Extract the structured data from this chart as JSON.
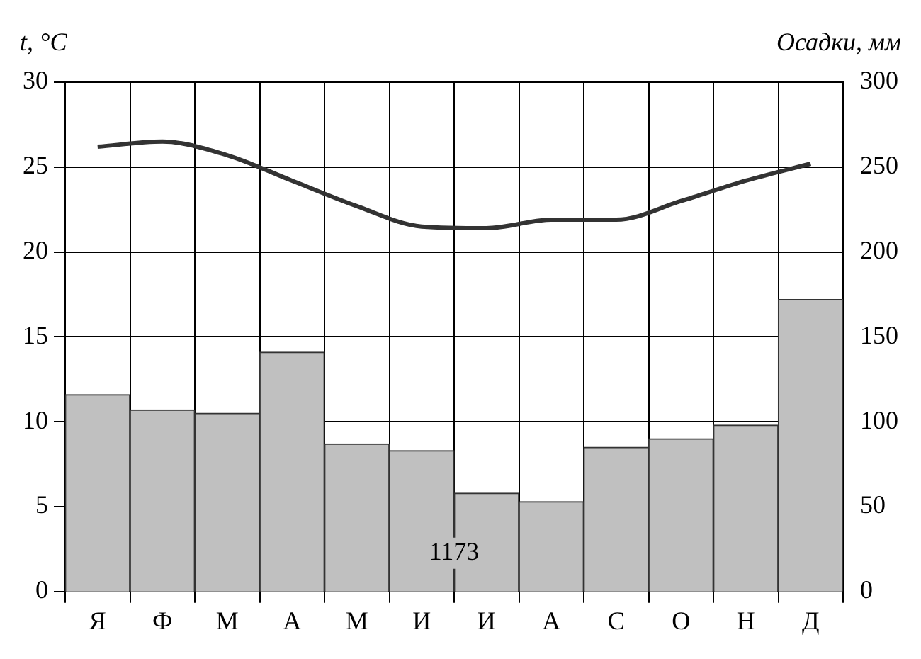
{
  "chart_data": {
    "type": "bar",
    "categories": [
      "Я",
      "Ф",
      "М",
      "А",
      "М",
      "И",
      "И",
      "А",
      "С",
      "О",
      "Н",
      "Д"
    ],
    "ylabel": "t, °C",
    "y2label": "Осадки, мм",
    "series": [
      {
        "axis": "y2",
        "color": "#c0c0c0",
        "values": [
          116,
          107,
          105,
          141,
          87,
          83,
          58,
          53,
          85,
          90,
          98,
          172
        ]
      },
      {
        "type": "line",
        "axis": "y",
        "color": "#333333",
        "values": [
          26.2,
          26.5,
          25.7,
          24.2,
          22.7,
          21.5,
          21.4,
          21.9,
          21.9,
          23.0,
          24.2,
          25.2
        ]
      }
    ],
    "ylim": [
      0,
      30
    ],
    "yticks": [
      0,
      5,
      10,
      15,
      20,
      25,
      30
    ],
    "y2lim": [
      0,
      300
    ],
    "y2ticks": [
      0,
      50,
      100,
      150,
      200,
      250,
      300
    ],
    "grid": true,
    "legend": false,
    "marker": "none",
    "line_style": "solid",
    "annotations": [
      "1173"
    ]
  }
}
